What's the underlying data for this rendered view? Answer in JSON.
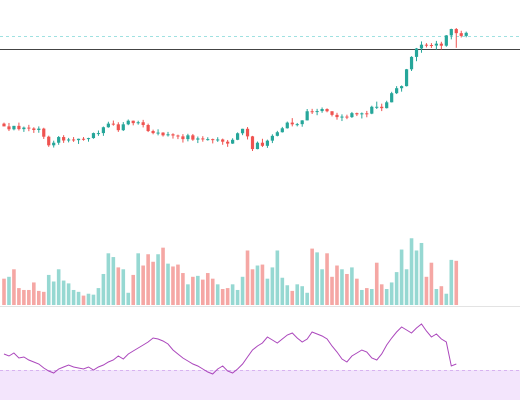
{
  "chart_data": [
    {
      "type": "candlestick",
      "panel": "price",
      "x_index_range": [
        0,
        91
      ],
      "ylim": [
        0,
        100
      ],
      "grid": false,
      "axes_visible": false,
      "reference_lines": [
        {
          "kind": "dashed",
          "value": 95.5,
          "color": "#9fe1e1"
        },
        {
          "kind": "solid",
          "value": 88.0,
          "color": "#444444"
        }
      ],
      "colors": {
        "up": "#26a69a",
        "down": "#ef5350"
      },
      "ohlc": [
        [
          44.4,
          45.0,
          42.8,
          42.8
        ],
        [
          42.8,
          44.8,
          40.1,
          41.1
        ],
        [
          41.1,
          43.1,
          40.5,
          43.1
        ],
        [
          43.1,
          45.0,
          40.4,
          41.2
        ],
        [
          41.2,
          42.7,
          39.6,
          42.1
        ],
        [
          42.1,
          43.7,
          40.0,
          41.6
        ],
        [
          41.6,
          42.3,
          39.0,
          40.7
        ],
        [
          40.7,
          42.8,
          39.1,
          41.5
        ],
        [
          41.5,
          42.0,
          35.5,
          36.8
        ],
        [
          36.8,
          37.4,
          30.9,
          31.8
        ],
        [
          31.8,
          34.5,
          30.5,
          33.3
        ],
        [
          33.3,
          37.2,
          32.1,
          36.6
        ],
        [
          36.6,
          37.7,
          33.2,
          34.6
        ],
        [
          34.6,
          36.1,
          33.5,
          35.2
        ],
        [
          35.2,
          36.6,
          33.8,
          34.8
        ],
        [
          34.8,
          35.7,
          32.6,
          35.6
        ],
        [
          35.6,
          36.6,
          34.5,
          35.4
        ],
        [
          35.4,
          36.2,
          33.9,
          36.0
        ],
        [
          36.0,
          39.2,
          35.6,
          38.9
        ],
        [
          38.9,
          40.4,
          37.3,
          38.9
        ],
        [
          38.9,
          42.7,
          37.3,
          42.3
        ],
        [
          42.3,
          45.5,
          42.0,
          44.4
        ],
        [
          44.4,
          46.2,
          43.2,
          44.0
        ],
        [
          44.0,
          45.2,
          39.6,
          40.6
        ],
        [
          40.6,
          45.3,
          40.1,
          44.0
        ],
        [
          44.0,
          46.8,
          43.5,
          46.1
        ],
        [
          46.1,
          46.2,
          43.4,
          44.7
        ],
        [
          44.7,
          46.1,
          43.8,
          45.2
        ],
        [
          45.2,
          46.6,
          42.2,
          43.6
        ],
        [
          43.6,
          44.4,
          39.5,
          40.1
        ],
        [
          40.1,
          40.9,
          38.2,
          38.9
        ],
        [
          38.9,
          41.1,
          37.6,
          39.2
        ],
        [
          39.2,
          39.4,
          36.9,
          37.6
        ],
        [
          37.6,
          39.6,
          36.9,
          38.2
        ],
        [
          38.2,
          38.8,
          35.7,
          37.5
        ],
        [
          37.5,
          38.0,
          35.4,
          37.0
        ],
        [
          37.0,
          38.3,
          33.4,
          35.4
        ],
        [
          35.4,
          38.5,
          34.1,
          37.6
        ],
        [
          37.6,
          38.4,
          34.4,
          35.1
        ],
        [
          35.1,
          36.9,
          33.1,
          35.8
        ],
        [
          35.8,
          37.1,
          33.9,
          35.4
        ],
        [
          35.4,
          36.5,
          34.5,
          35.4
        ],
        [
          35.4,
          35.7,
          32.9,
          34.8
        ],
        [
          34.8,
          36.5,
          33.8,
          35.2
        ],
        [
          35.2,
          35.7,
          32.1,
          33.9
        ],
        [
          33.9,
          34.9,
          30.9,
          32.8
        ],
        [
          32.8,
          35.9,
          32.6,
          35.0
        ],
        [
          35.0,
          39.3,
          34.8,
          38.8
        ],
        [
          38.8,
          41.4,
          37.7,
          41.4
        ],
        [
          41.4,
          42.4,
          35.2,
          37.0
        ],
        [
          37.0,
          37.3,
          28.5,
          29.6
        ],
        [
          29.6,
          34.0,
          29.5,
          33.3
        ],
        [
          33.3,
          35.6,
          30.8,
          31.5
        ],
        [
          31.5,
          35.1,
          30.3,
          34.5
        ],
        [
          34.5,
          38.2,
          33.1,
          37.3
        ],
        [
          37.3,
          40.2,
          37.0,
          39.4
        ],
        [
          39.4,
          42.5,
          39.2,
          41.7
        ],
        [
          41.7,
          45.6,
          41.5,
          45.0
        ],
        [
          45.0,
          47.6,
          42.8,
          44.0
        ],
        [
          44.0,
          44.8,
          42.8,
          44.1
        ],
        [
          44.1,
          46.4,
          42.6,
          46.3
        ],
        [
          46.3,
          52.9,
          46.2,
          51.6
        ],
        [
          51.6,
          53.0,
          50.0,
          51.5
        ],
        [
          51.5,
          53.0,
          49.3,
          51.7
        ],
        [
          51.7,
          53.8,
          50.7,
          52.9
        ],
        [
          52.9,
          53.3,
          51.0,
          51.6
        ],
        [
          51.6,
          51.6,
          48.6,
          49.5
        ],
        [
          49.5,
          50.7,
          46.7,
          48.2
        ],
        [
          48.2,
          49.8,
          45.9,
          48.5
        ],
        [
          48.5,
          49.6,
          47.0,
          48.2
        ],
        [
          48.2,
          51.2,
          47.7,
          50.5
        ],
        [
          50.5,
          50.8,
          48.8,
          49.8
        ],
        [
          49.8,
          50.9,
          47.4,
          50.4
        ],
        [
          50.4,
          51.8,
          48.1,
          50.2
        ],
        [
          50.2,
          54.8,
          49.9,
          54.2
        ],
        [
          54.2,
          57.2,
          52.9,
          54.2
        ],
        [
          54.2,
          56.0,
          51.7,
          53.4
        ],
        [
          53.4,
          57.7,
          53.2,
          56.8
        ],
        [
          56.8,
          62.9,
          56.7,
          62.1
        ],
        [
          62.1,
          66.2,
          61.6,
          65.0
        ],
        [
          65.0,
          66.6,
          63.0,
          66.2
        ],
        [
          66.2,
          76.2,
          66.0,
          76.0
        ],
        [
          76.0,
          83.6,
          75.0,
          83.2
        ],
        [
          83.2,
          88.4,
          80.7,
          88.1
        ],
        [
          88.1,
          92.2,
          85.6,
          90.3
        ],
        [
          90.3,
          91.2,
          88.7,
          90.1
        ],
        [
          90.1,
          91.2,
          88.4,
          89.8
        ],
        [
          89.8,
          92.5,
          87.4,
          90.9
        ],
        [
          90.9,
          92.0,
          87.5,
          89.7
        ],
        [
          89.7,
          95.9,
          89.1,
          95.7
        ],
        [
          95.7,
          99.6,
          93.4,
          99.4
        ],
        [
          99.4,
          100.0,
          88.5,
          97.0
        ],
        [
          97.0,
          98.4,
          94.5,
          95.4
        ],
        [
          95.4,
          97.9,
          94.6,
          97.2
        ]
      ]
    },
    {
      "type": "bar",
      "panel": "volume",
      "ylim": [
        0,
        100
      ],
      "axes_visible": false,
      "colors": {
        "up": "#96d8d2",
        "down": "#f5a7a4"
      },
      "values": [
        28,
        30,
        38,
        18,
        16,
        16,
        24,
        15,
        14,
        32,
        25,
        38,
        26,
        23,
        16,
        14,
        10,
        12,
        11,
        18,
        33,
        55,
        51,
        40,
        38,
        13,
        32,
        55,
        42,
        54,
        46,
        54,
        61,
        44,
        41,
        43,
        34,
        22,
        30,
        31,
        27,
        34,
        28,
        22,
        17,
        18,
        22,
        16,
        30,
        58,
        38,
        42,
        43,
        28,
        40,
        58,
        29,
        21,
        15,
        22,
        20,
        13,
        60,
        56,
        38,
        55,
        30,
        42,
        38,
        33,
        40,
        28,
        16,
        18,
        17,
        45,
        22,
        17,
        24,
        35,
        59,
        38,
        71,
        58,
        66,
        30,
        45,
        17,
        20,
        12,
        48,
        47
      ],
      "up": [
        false,
        true,
        false,
        false,
        false,
        false,
        false,
        false,
        false,
        true,
        true,
        true,
        true,
        true,
        true,
        true,
        false,
        true,
        true,
        true,
        true,
        true,
        true,
        false,
        true,
        true,
        false,
        true,
        false,
        false,
        false,
        true,
        false,
        true,
        false,
        false,
        false,
        true,
        false,
        true,
        false,
        false,
        false,
        true,
        false,
        false,
        true,
        true,
        true,
        false,
        false,
        true,
        false,
        true,
        true,
        true,
        true,
        true,
        false,
        true,
        true,
        true,
        false,
        true,
        true,
        false,
        false,
        false,
        true,
        false,
        true,
        false,
        true,
        false,
        true,
        false,
        false,
        true,
        true,
        true,
        true,
        true,
        true,
        true,
        true,
        false,
        false,
        true,
        false,
        true,
        true,
        false
      ]
    },
    {
      "type": "line",
      "panel": "rsi",
      "ylim": [
        0,
        100
      ],
      "band": {
        "from": 0,
        "to": 30,
        "color": "#f3e5fc",
        "border": "#d7b3f0"
      },
      "color": "#ab47bc",
      "values": [
        46,
        44,
        47,
        42,
        43,
        40,
        38,
        36,
        32,
        29,
        27,
        31,
        33,
        35,
        33,
        32,
        31,
        33,
        30,
        33,
        35,
        38,
        40,
        44,
        41,
        46,
        49,
        52,
        55,
        58,
        62,
        61,
        59,
        56,
        50,
        46,
        42,
        39,
        36,
        34,
        31,
        28,
        26,
        31,
        34,
        29,
        27,
        31,
        36,
        43,
        50,
        54,
        57,
        63,
        60,
        57,
        61,
        65,
        67,
        62,
        58,
        61,
        68,
        66,
        64,
        61,
        54,
        48,
        41,
        38,
        44,
        47,
        50,
        48,
        42,
        40,
        46,
        55,
        62,
        68,
        73,
        70,
        67,
        72,
        76,
        69,
        63,
        66,
        61,
        58,
        34,
        36
      ]
    }
  ]
}
